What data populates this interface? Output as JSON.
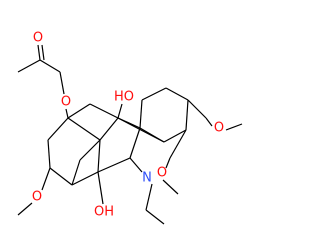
{
  "atoms": [
    {
      "label": "O"
    },
    {
      "label": "O"
    },
    {
      "label": "HO"
    },
    {
      "label": "O"
    },
    {
      "label": "O"
    },
    {
      "label": "OH"
    },
    {
      "label": "N"
    },
    {
      "label": "O"
    }
  ]
}
